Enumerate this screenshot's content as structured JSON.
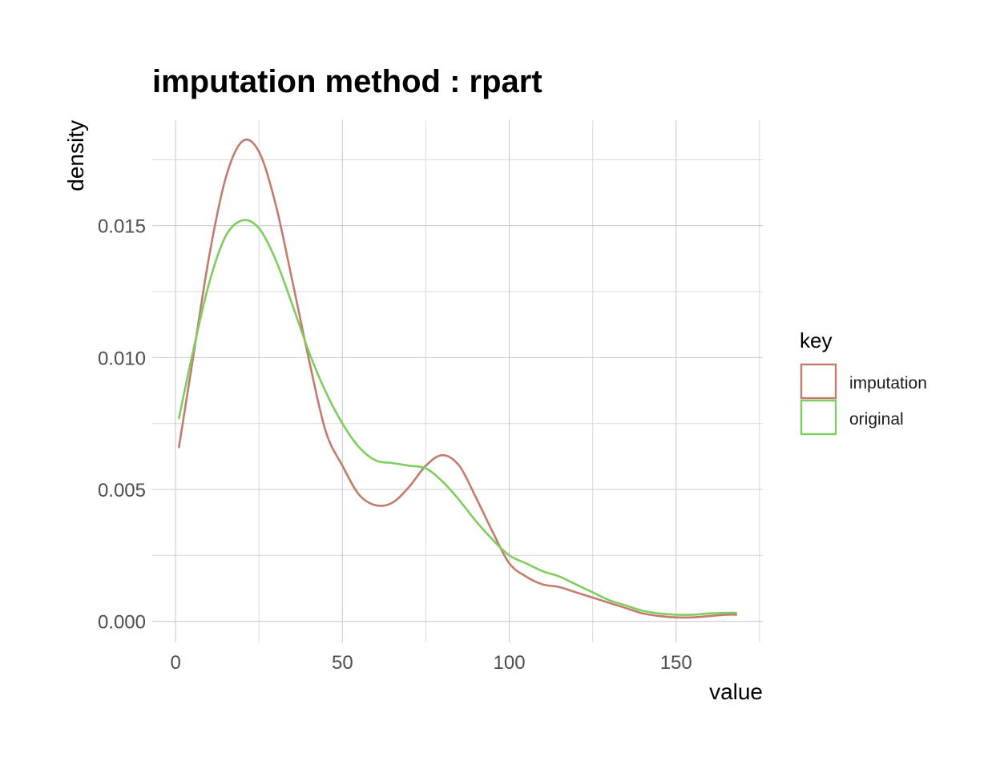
{
  "chart_data": {
    "type": "line",
    "title": "imputation method : rpart",
    "xlabel": "value",
    "ylabel": "density",
    "xlim": [
      -7,
      176
    ],
    "ylim": [
      -0.0008,
      0.019
    ],
    "x_ticks": [
      0,
      50,
      100,
      150
    ],
    "x_tick_labels": [
      "0",
      "50",
      "100",
      "150"
    ],
    "y_ticks": [
      0.0,
      0.005,
      0.01,
      0.015
    ],
    "y_tick_labels": [
      "0.000",
      "0.005",
      "0.010",
      "0.015"
    ],
    "grid": true,
    "legend": {
      "title": "key",
      "position": "right"
    },
    "series": [
      {
        "name": "imputation",
        "color": "#c27b6c",
        "points": [
          [
            1,
            0.0066
          ],
          [
            5,
            0.0098
          ],
          [
            10,
            0.0138
          ],
          [
            15,
            0.0168
          ],
          [
            20,
            0.0182
          ],
          [
            25,
            0.0178
          ],
          [
            30,
            0.0158
          ],
          [
            35,
            0.0129
          ],
          [
            40,
            0.0099
          ],
          [
            45,
            0.0072
          ],
          [
            50,
            0.0059
          ],
          [
            55,
            0.0048
          ],
          [
            60,
            0.0044
          ],
          [
            65,
            0.0045
          ],
          [
            70,
            0.0051
          ],
          [
            75,
            0.0059
          ],
          [
            80,
            0.0063
          ],
          [
            85,
            0.0059
          ],
          [
            90,
            0.0047
          ],
          [
            95,
            0.0034
          ],
          [
            100,
            0.0022
          ],
          [
            105,
            0.0017
          ],
          [
            110,
            0.0014
          ],
          [
            115,
            0.0013
          ],
          [
            120,
            0.0011
          ],
          [
            125,
            0.0009
          ],
          [
            130,
            0.0007
          ],
          [
            135,
            0.0005
          ],
          [
            140,
            0.0003
          ],
          [
            145,
            0.0002
          ],
          [
            150,
            0.00015
          ],
          [
            155,
            0.00015
          ],
          [
            160,
            0.0002
          ],
          [
            165,
            0.00025
          ],
          [
            168,
            0.00025
          ]
        ]
      },
      {
        "name": "original",
        "color": "#7fcd5f",
        "points": [
          [
            1,
            0.0077
          ],
          [
            5,
            0.0101
          ],
          [
            10,
            0.0128
          ],
          [
            15,
            0.0146
          ],
          [
            20,
            0.0152
          ],
          [
            25,
            0.0149
          ],
          [
            30,
            0.0137
          ],
          [
            35,
            0.012
          ],
          [
            40,
            0.0102
          ],
          [
            45,
            0.0087
          ],
          [
            50,
            0.0075
          ],
          [
            55,
            0.0066
          ],
          [
            60,
            0.0061
          ],
          [
            65,
            0.006
          ],
          [
            70,
            0.0059
          ],
          [
            75,
            0.0058
          ],
          [
            80,
            0.0053
          ],
          [
            85,
            0.0046
          ],
          [
            90,
            0.0038
          ],
          [
            95,
            0.0031
          ],
          [
            100,
            0.0025
          ],
          [
            105,
            0.0022
          ],
          [
            110,
            0.0019
          ],
          [
            115,
            0.0017
          ],
          [
            120,
            0.0014
          ],
          [
            125,
            0.0011
          ],
          [
            130,
            0.0008
          ],
          [
            135,
            0.0006
          ],
          [
            140,
            0.0004
          ],
          [
            145,
            0.0003
          ],
          [
            150,
            0.00025
          ],
          [
            155,
            0.00025
          ],
          [
            160,
            0.0003
          ],
          [
            165,
            0.00032
          ],
          [
            168,
            0.00032
          ]
        ]
      }
    ]
  }
}
